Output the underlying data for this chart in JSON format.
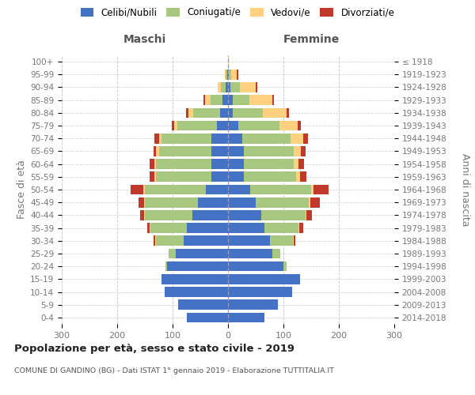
{
  "age_groups": [
    "0-4",
    "5-9",
    "10-14",
    "15-19",
    "20-24",
    "25-29",
    "30-34",
    "35-39",
    "40-44",
    "45-49",
    "50-54",
    "55-59",
    "60-64",
    "65-69",
    "70-74",
    "75-79",
    "80-84",
    "85-89",
    "90-94",
    "95-99",
    "100+"
  ],
  "birth_years": [
    "2014-2018",
    "2009-2013",
    "2004-2008",
    "1999-2003",
    "1994-1998",
    "1989-1993",
    "1984-1988",
    "1979-1983",
    "1974-1978",
    "1969-1973",
    "1964-1968",
    "1959-1963",
    "1954-1958",
    "1949-1953",
    "1944-1948",
    "1939-1943",
    "1934-1938",
    "1929-1933",
    "1924-1928",
    "1919-1923",
    "≤ 1918"
  ],
  "males_celibe": [
    75,
    90,
    115,
    120,
    110,
    95,
    80,
    75,
    65,
    55,
    40,
    30,
    30,
    30,
    30,
    20,
    15,
    10,
    5,
    2,
    0
  ],
  "males_coniugato": [
    0,
    0,
    0,
    0,
    3,
    12,
    50,
    65,
    85,
    95,
    110,
    100,
    100,
    95,
    90,
    72,
    48,
    22,
    8,
    2,
    0
  ],
  "males_vedovo": [
    0,
    0,
    0,
    0,
    0,
    0,
    1,
    1,
    2,
    2,
    3,
    3,
    3,
    5,
    5,
    5,
    8,
    10,
    5,
    2,
    0
  ],
  "males_divorziato": [
    0,
    0,
    0,
    0,
    0,
    0,
    3,
    5,
    7,
    10,
    22,
    8,
    8,
    5,
    8,
    5,
    5,
    2,
    0,
    0,
    0
  ],
  "females_nubile": [
    65,
    90,
    115,
    130,
    100,
    80,
    75,
    65,
    60,
    50,
    40,
    28,
    28,
    28,
    25,
    18,
    8,
    8,
    4,
    2,
    0
  ],
  "females_coniugata": [
    0,
    0,
    0,
    0,
    5,
    14,
    42,
    62,
    80,
    95,
    110,
    95,
    90,
    90,
    88,
    75,
    55,
    30,
    18,
    4,
    0
  ],
  "females_vedova": [
    0,
    0,
    0,
    0,
    0,
    0,
    1,
    1,
    2,
    3,
    4,
    7,
    9,
    13,
    22,
    32,
    42,
    42,
    28,
    10,
    2
  ],
  "females_divorziata": [
    0,
    0,
    0,
    0,
    0,
    0,
    4,
    7,
    9,
    18,
    28,
    12,
    10,
    9,
    9,
    7,
    5,
    3,
    3,
    2,
    0
  ],
  "colors": {
    "celibe": "#4472C4",
    "coniugato": "#A8C880",
    "vedovo": "#FFD080",
    "divorziato": "#C0392B"
  },
  "title": "Popolazione per età, sesso e stato civile - 2019",
  "subtitle": "COMUNE DI GANDINO (BG) - Dati ISTAT 1° gennaio 2019 - Elaborazione TUTTITALIA.IT",
  "xlabel_left": "Maschi",
  "xlabel_right": "Femmine",
  "ylabel_left": "Fasce di età",
  "ylabel_right": "Anni di nascita",
  "legend_labels": [
    "Celibi/Nubili",
    "Coniugati/e",
    "Vedovi/e",
    "Divorziati/e"
  ],
  "xlim": 300,
  "background_color": "#ffffff",
  "grid_color": "#cccccc"
}
